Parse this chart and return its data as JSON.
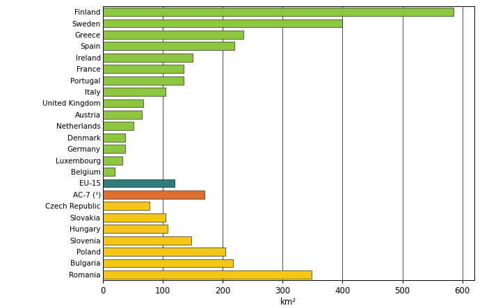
{
  "categories": [
    "Finland",
    "Sweden",
    "Greece",
    "Spain",
    "Ireland",
    "France",
    "Portugal",
    "Italy",
    "United Kingdom",
    "Austria",
    "Netherlands",
    "Denmark",
    "Germany",
    "Luxembourg",
    "Belgium",
    "EU-15",
    "AC-7 (¹)",
    "Czech Republic",
    "Slovakia",
    "Hungary",
    "Slovenia",
    "Poland",
    "Bulgaria",
    "Romania"
  ],
  "values": [
    585,
    400,
    235,
    220,
    150,
    135,
    135,
    105,
    68,
    65,
    52,
    38,
    37,
    33,
    20,
    120,
    170,
    78,
    105,
    108,
    148,
    205,
    218,
    348
  ],
  "colors": [
    "#8dc63f",
    "#8dc63f",
    "#8dc63f",
    "#8dc63f",
    "#8dc63f",
    "#8dc63f",
    "#8dc63f",
    "#8dc63f",
    "#8dc63f",
    "#8dc63f",
    "#8dc63f",
    "#8dc63f",
    "#8dc63f",
    "#8dc63f",
    "#8dc63f",
    "#2e7d7d",
    "#e07030",
    "#f5c518",
    "#f5c518",
    "#f5c518",
    "#f5c518",
    "#f5c518",
    "#f5c518",
    "#f5c518"
  ],
  "xlabel": "km²",
  "xlim": [
    0,
    620
  ],
  "xticks": [
    0,
    100,
    200,
    300,
    400,
    500,
    600
  ],
  "grid_color": "#000000",
  "bar_height": 0.72,
  "figsize": [
    7.03,
    4.43
  ],
  "dpi": 100,
  "label_fontsize": 7.5,
  "tick_fontsize": 8.5
}
